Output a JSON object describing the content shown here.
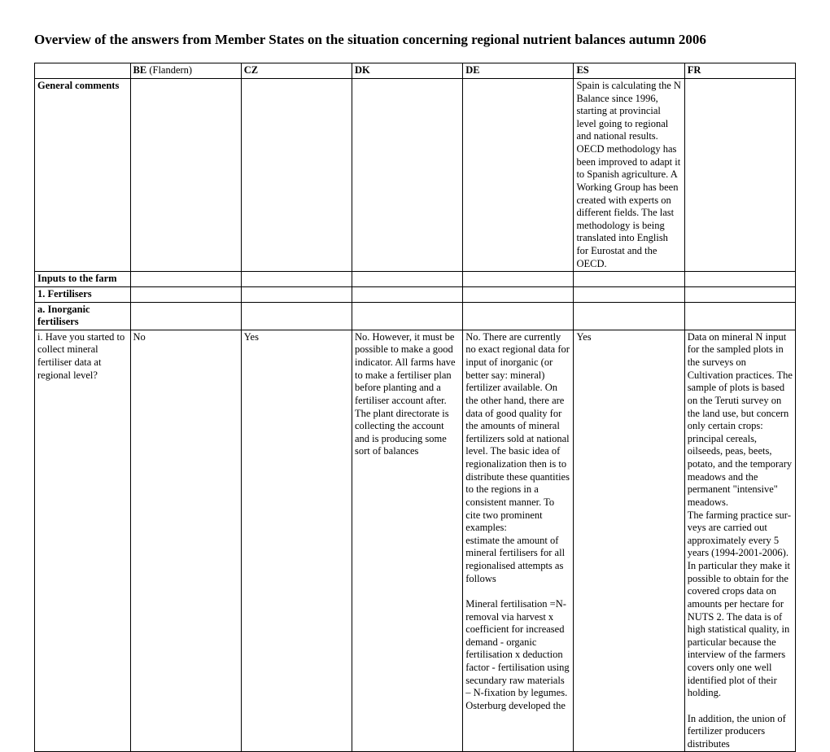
{
  "title": "Overview of the answers from Member States on the situation concerning regional nutrient balances autumn 2006",
  "headers": {
    "label": "",
    "be_code": "BE",
    "be_note": " (Flandern)",
    "cz_code": "CZ",
    "dk_code": "DK",
    "de_code": "DE",
    "es_code": "ES",
    "fr_code": "FR"
  },
  "rows": {
    "general": {
      "label": "General comments",
      "be": "",
      "cz": "",
      "dk": "",
      "de": "",
      "es": "Spain is calculating the N Balance since 1996, starting at provincial level going to regional and national res­ults.\nOECD methodology has been improved to adapt it to Spanish agriculture. A Working Group has been created with experts on dif­ferent fields. The last meth­odology is being translated into English for Eurostat and the OECD.",
      "fr": ""
    },
    "inputs": {
      "label": "Inputs to the farm"
    },
    "fertilisers": {
      "label": "1. Fertilisers"
    },
    "inorganic": {
      "label": "a. Inorganic fertilisers"
    },
    "q_i": {
      "label": "i. Have you started to collect mineral fertiliser data at regional level?",
      "be": "No",
      "cz": "Yes",
      "dk": "No. However, it must be possible to make a good in­dicator. All farms have to make a fertiliser plan before planting and a fertiliser ac­count after. The plant dir­ectorate is collecting the ac­count and is producing some sort of balances",
      "de": "No. There are currently no exact regional data for in­put of inorganic (or better say: mineral) fertilizer available. On the other hand, there are data of good quality for the amounts of mineral fertil­izers sold at national level. The basic idea of regional­ization then is to distribute these quantities to the re­gions in a consistent man­ner. To cite two prominent examples:\nestimate the amount of mineral fertilisers for all regionalised attempts as follows\n\nMineral fertilisation =N-removal via harvest x coefficient for increased demand - organic fertilisa­tion x deduction factor - fertilisation using secundary raw materials – N-fixation by legumes. Osterburg developed the",
      "es": "Yes",
      "fr": "Data on mineral N input for the sampled plots in the sur­veys on Cultivation prac­tices. The sample of plots is based on the Teruti survey on the land use, but concern only certain crops: principal cereals, oilseeds, peas, beets, potato, and the tem­porary meadows and the permanent \"intensive\" meadows.\nThe farming practice sur­veys are carried out approx­imately every 5 years (1994-2001-2006). In par­ticular they make it possible to obtain for the covered crops data on amounts per hectare for NUTS 2. The data is of high statistical quality, in particular be­cause the interview of the farmers covers only one well identified plot of their holding.\n\nIn addition, the union of fer­tilizer producers distributes"
    }
  }
}
